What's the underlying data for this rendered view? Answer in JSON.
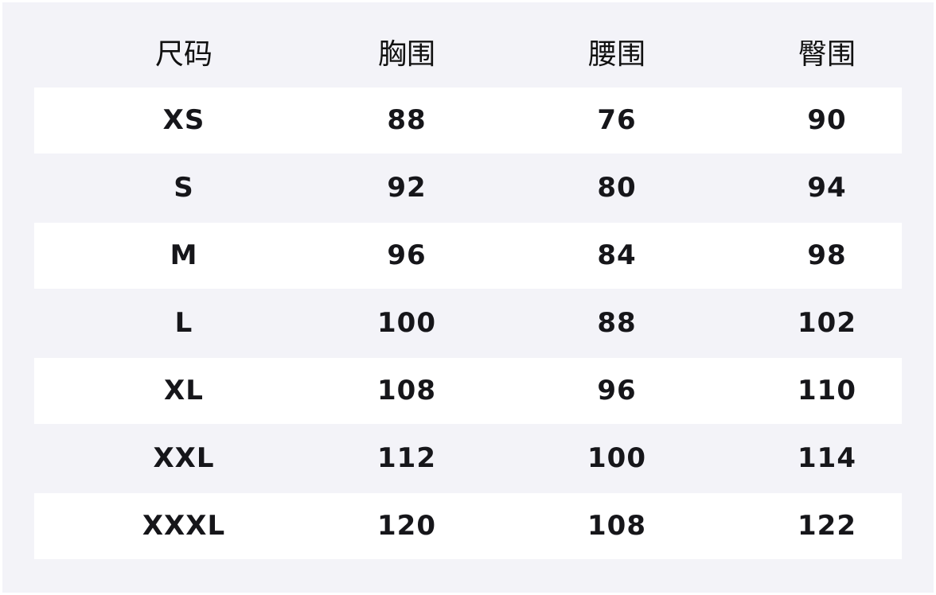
{
  "table": {
    "header": [
      "尺码",
      "胸围",
      "腰围",
      "臀围"
    ],
    "rows": [
      [
        "XS",
        88,
        76,
        90
      ],
      [
        "S",
        92,
        80,
        94
      ],
      [
        "M",
        96,
        84,
        98
      ],
      [
        "L",
        100,
        88,
        102
      ],
      [
        "XL",
        108,
        96,
        110
      ],
      [
        "XXL",
        112,
        100,
        114
      ],
      [
        "XXXL",
        120,
        108,
        122
      ]
    ]
  }
}
